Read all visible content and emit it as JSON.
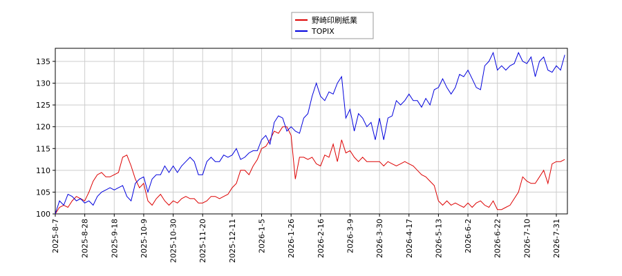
{
  "chart_data": {
    "type": "line",
    "categories": [
      "2025-8-7",
      null,
      null,
      null,
      null,
      null,
      null,
      "2025-8-28",
      null,
      null,
      null,
      null,
      null,
      null,
      "2025-9-18",
      null,
      null,
      null,
      null,
      null,
      null,
      "2025-10-9",
      null,
      null,
      null,
      null,
      null,
      null,
      "2025-10-30",
      null,
      null,
      null,
      null,
      null,
      null,
      "2025-11-20",
      null,
      null,
      null,
      null,
      null,
      null,
      "2025-12-11",
      null,
      null,
      null,
      null,
      null,
      null,
      "2026-1-5",
      null,
      null,
      null,
      null,
      null,
      null,
      "2026-1-26",
      null,
      null,
      null,
      null,
      null,
      null,
      "2026-2-16",
      null,
      null,
      null,
      null,
      null,
      null,
      "2026-3-9",
      null,
      null,
      null,
      null,
      null,
      null,
      "2026-3-30",
      null,
      null,
      null,
      null,
      null,
      null,
      "2026-4-17",
      null,
      null,
      null,
      null,
      null,
      null,
      "2026-5-13",
      null,
      null,
      null,
      null,
      null,
      null,
      "2026-6-2",
      null,
      null,
      null,
      null,
      null,
      null,
      "2026-6-22",
      null,
      null,
      null,
      null,
      null,
      null,
      "2026-7-10",
      null,
      null,
      null,
      null,
      null,
      null,
      "2026-7-31",
      null,
      null
    ],
    "series": [
      {
        "name": "野崎印刷紙業",
        "color": "#dd0000",
        "values": [
          100,
          101.5,
          102,
          101.5,
          103,
          104,
          103.5,
          103,
          105,
          107.5,
          109,
          109.5,
          108.5,
          108.5,
          109,
          109.5,
          113,
          113.5,
          111,
          108,
          106,
          107,
          103,
          102,
          103.5,
          104.5,
          103,
          102,
          103,
          102.5,
          103.5,
          104,
          103.5,
          103.5,
          102.5,
          102.5,
          103,
          104,
          104,
          103.5,
          104,
          104.5,
          106,
          107,
          110,
          110,
          109,
          111,
          112.5,
          115,
          115.5,
          117,
          119,
          118.5,
          120,
          120,
          118,
          108,
          113,
          113,
          112.5,
          113,
          111.5,
          111,
          113.5,
          113,
          116,
          112,
          117,
          114,
          114.5,
          113,
          112,
          113,
          112,
          112,
          112,
          112,
          111,
          112,
          111.5,
          111,
          111.5,
          112,
          111.5,
          111,
          110,
          109,
          108.5,
          107.5,
          106.5,
          103,
          102,
          103,
          102,
          102.5,
          102,
          101.5,
          102.5,
          101.5,
          102.5,
          103,
          102,
          101.5,
          103,
          101,
          101,
          101.5,
          102,
          103.5,
          105,
          108.5,
          107.5,
          107,
          107,
          108.5,
          110,
          107,
          111.5,
          112,
          112,
          112.5
        ]
      },
      {
        "name": "TOPIX",
        "color": "#0000dd",
        "values": [
          100,
          103,
          102,
          104.5,
          104,
          103,
          103.5,
          102.5,
          103,
          102,
          104,
          105,
          105.5,
          106,
          105.5,
          106,
          106.5,
          104,
          103,
          107,
          108,
          108.5,
          105,
          108,
          109,
          109,
          111,
          109.5,
          111,
          109.5,
          111,
          112,
          113,
          112,
          109,
          109,
          112,
          113,
          112,
          112,
          113.5,
          113,
          113.5,
          115,
          112.5,
          113,
          114,
          114.5,
          114.5,
          117,
          118,
          116,
          121,
          122.5,
          122,
          119,
          120,
          119,
          118.5,
          122,
          123,
          127,
          130,
          127,
          126,
          128,
          127.5,
          130,
          131.5,
          122,
          124,
          119,
          123,
          122,
          120,
          121,
          117,
          122,
          117,
          122,
          122.5,
          126,
          125,
          126,
          127.5,
          126,
          126,
          124.5,
          126.5,
          125,
          128.5,
          129,
          131,
          129,
          127.5,
          129,
          132,
          131.5,
          133,
          131,
          129,
          128.5,
          134,
          135,
          137,
          133,
          134,
          133,
          134,
          134.5,
          137,
          135,
          134.5,
          136,
          131.5,
          135,
          136,
          133,
          132.5,
          134,
          133,
          136.5
        ]
      }
    ],
    "ylim": [
      100,
      138
    ],
    "yticks": [
      100,
      105,
      110,
      115,
      120,
      125,
      130,
      135
    ],
    "grid": true
  }
}
